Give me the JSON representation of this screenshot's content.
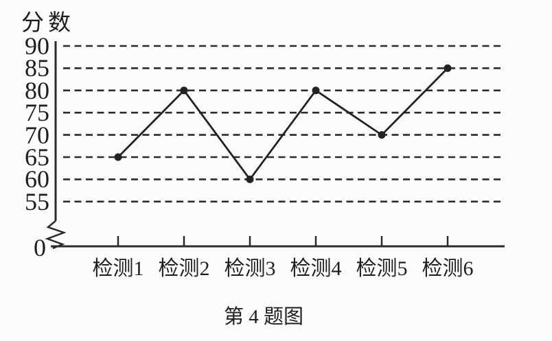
{
  "figure": {
    "y_axis_title": "分数",
    "origin_label": "0",
    "caption": "第 4 题图"
  },
  "chart_data": {
    "type": "line",
    "title": "第 4 题图",
    "ylabel": "分数",
    "xlabel": "",
    "categories": [
      "检测1",
      "检测2",
      "检测3",
      "检测4",
      "检测5",
      "检测6"
    ],
    "values": [
      65,
      80,
      60,
      80,
      70,
      85
    ],
    "yticks": [
      90,
      85,
      80,
      75,
      70,
      65,
      60,
      55
    ],
    "origin_tick_label": "0",
    "ylim_shown": [
      55,
      90
    ],
    "y_axis_break_to_zero": true,
    "grid": "horizontal-dashed",
    "legend": "none",
    "marker": "filled-circle",
    "line_color": "#222222",
    "ink_color": "#2a2a2a",
    "background_color": "#fcfcfc"
  }
}
